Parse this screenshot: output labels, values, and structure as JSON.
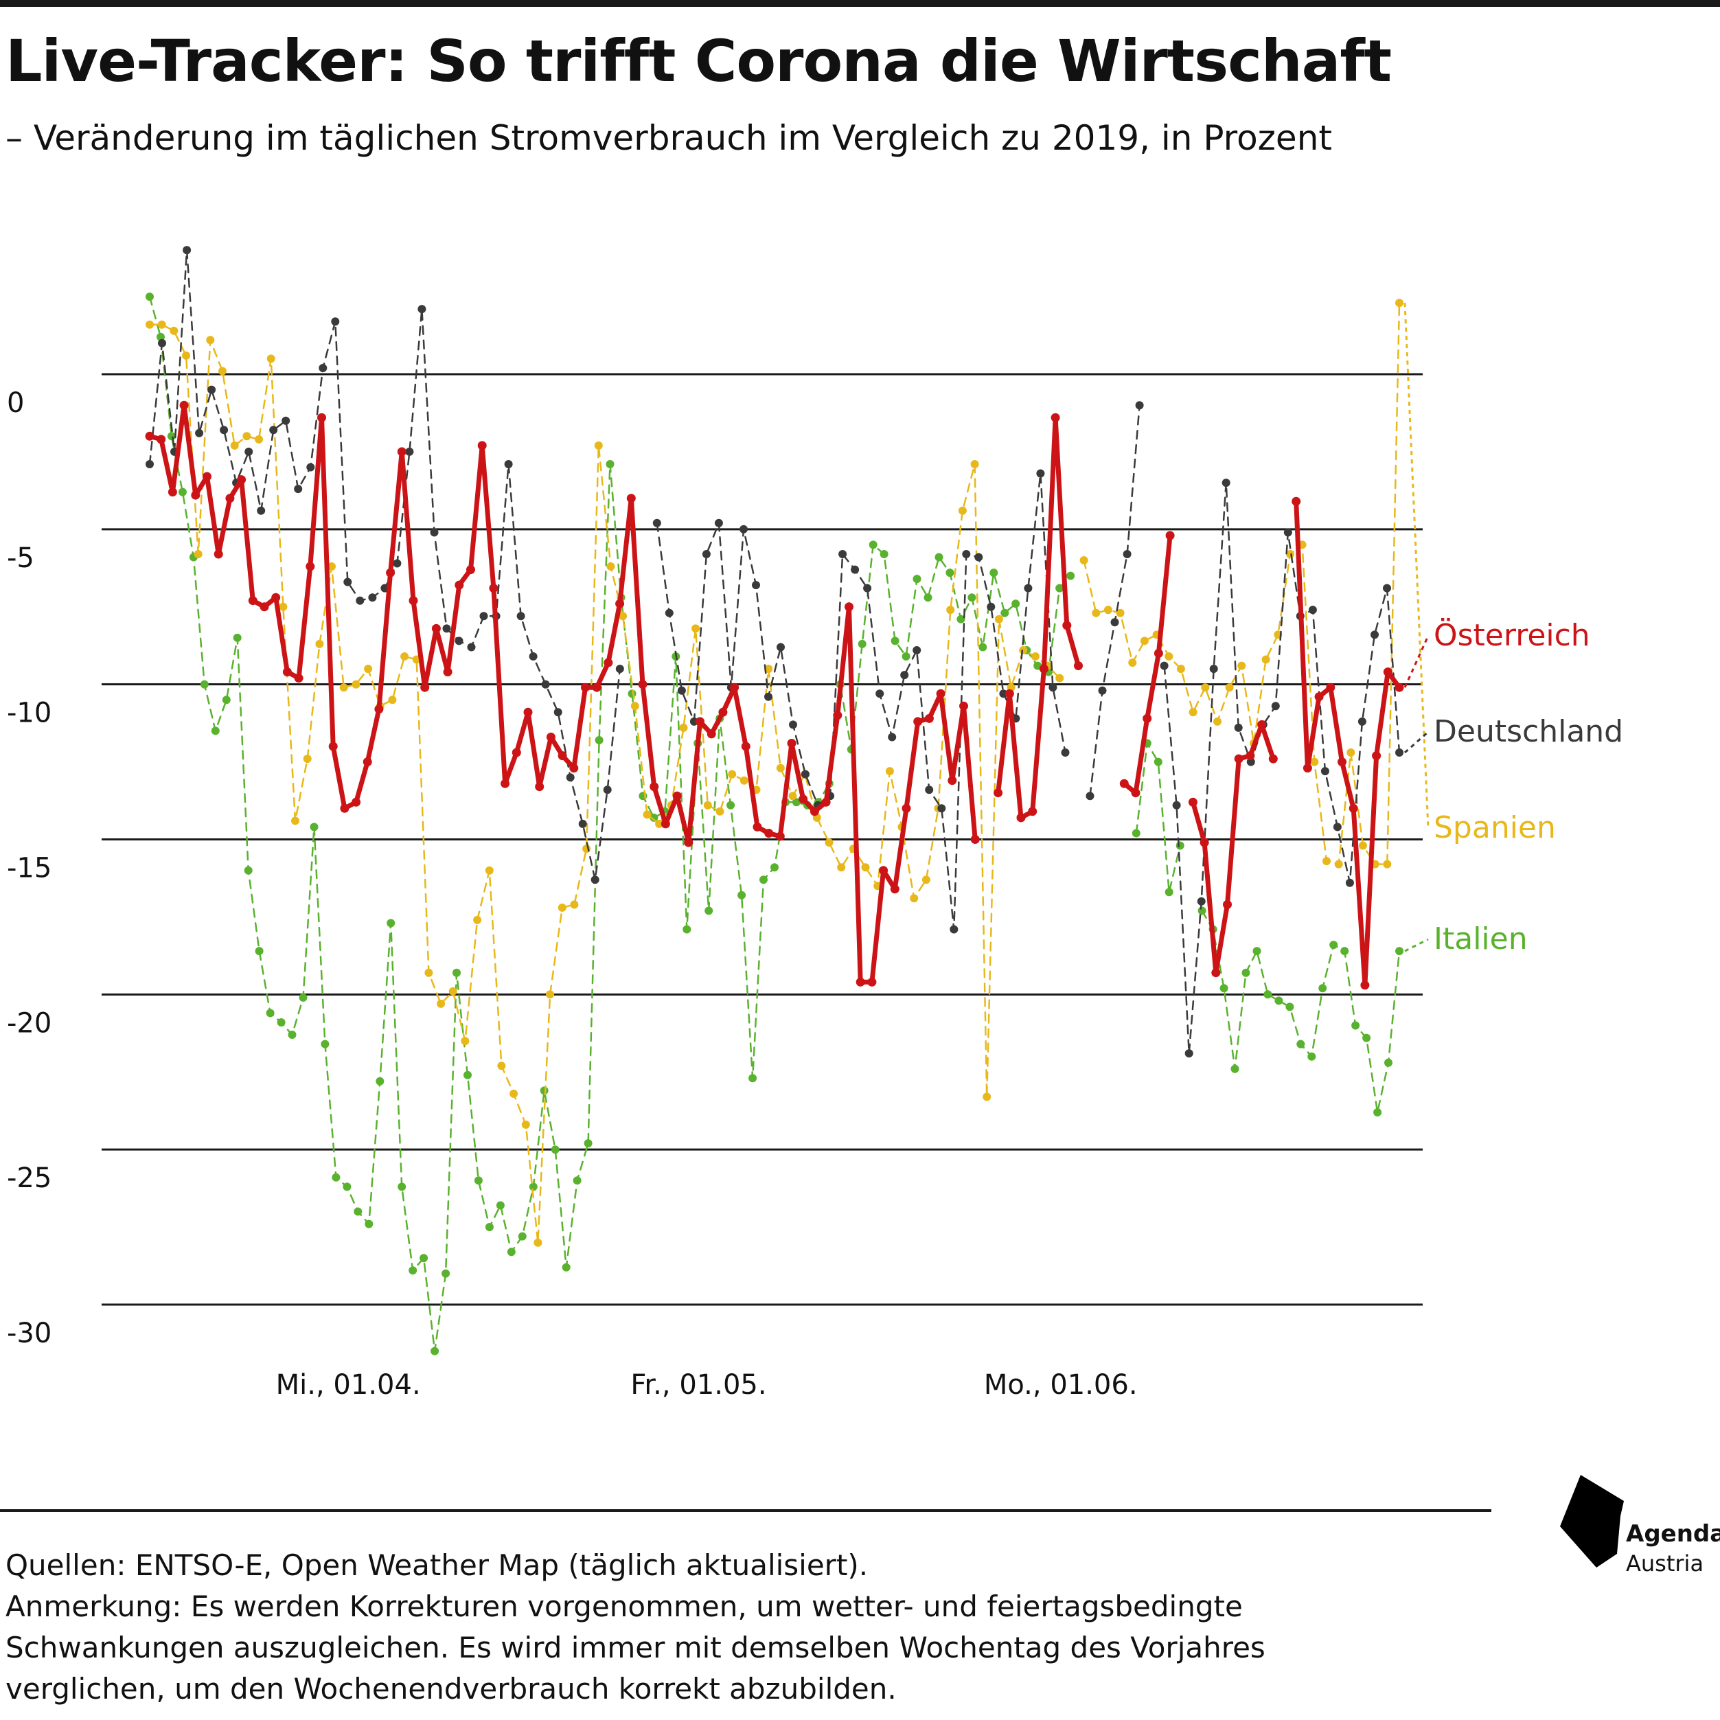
{
  "title": "Live-Tracker: So trifft Corona die Wirtschaft",
  "subtitle": "– Veränderung im täglichen Stromverbrauch im Vergleich zu 2019, in Prozent",
  "footer": {
    "sources": "Quellen: ENTSO-E, Open Weather Map (täglich aktualisiert).",
    "note_line1": "Anmerkung: Es werden Korrekturen vorgenommen, um wetter- und feiertagsbedingte",
    "note_line2": "Schwankungen auszugleichen. Es wird immer mit demselben Wochentag des Vorjahres",
    "note_line3": "verglichen, um den Wochenendverbrauch korrekt abzubilden."
  },
  "logo": {
    "line1": "Agenda",
    "line2": "Austria"
  },
  "chart_data": {
    "type": "line",
    "title": "Live-Tracker: So trifft Corona die Wirtschaft",
    "subtitle": "– Veränderung im täglichen Stromverbrauch im Vergleich zu 2019, in Prozent",
    "ylim": [
      -30,
      0
    ],
    "yticks": [
      0,
      -5,
      -10,
      -15,
      -20,
      -25,
      -30
    ],
    "ytick_labels": [
      "0",
      "-5",
      "-10",
      "-15",
      "-20",
      "-25",
      "-30"
    ],
    "x_start": "2020-03-15",
    "x_end": "2020-06-30",
    "xticks": [
      {
        "date": "2020-04-01",
        "label": "Mi., 01.04."
      },
      {
        "date": "2020-05-01",
        "label": "Fr., 01.05."
      },
      {
        "date": "2020-06-01",
        "label": "Mo., 01.06."
      }
    ],
    "grid": true,
    "legend": "labels at right end of lines",
    "series": [
      {
        "name": "Italien",
        "color": "#59b22e",
        "style": "dashed",
        "width": 2.5,
        "values": [
          2.5,
          1.2,
          -2,
          -3.8,
          -5.9,
          -10,
          -11.5,
          -10.5,
          -8.5,
          -16,
          -18.6,
          -20.6,
          -20.9,
          -21.3,
          -20.1,
          -14.6,
          -21.6,
          -25.9,
          -26.2,
          -27,
          -27.4,
          -22.8,
          -17.7,
          -26.2,
          -28.9,
          -28.5,
          -31.5,
          -29,
          -19.3,
          -22.6,
          -26,
          -27.5,
          -26.8,
          -28.3,
          -27.8,
          -26.2,
          -23.1,
          -25,
          -28.8,
          -26,
          -24.8,
          -11.8,
          -2.9,
          -7.2,
          -10.3,
          -13.6,
          -14.3,
          -14.1,
          -9.1,
          -17.9,
          -11.9,
          -17.3,
          -11.1,
          -13.9,
          -16.8,
          -22.7,
          -16.3,
          -15.9,
          -13.8,
          -13.8,
          -13.9,
          -13.8,
          -13.2,
          -10,
          -12.1,
          -8.7,
          -5.5,
          -5.8,
          -8.6,
          -9.1,
          -6.6,
          -7.2,
          -5.9,
          -6.4,
          -7.9,
          -7.2,
          -8.8,
          -6.4,
          -7.7,
          -7.4,
          -8.9,
          -9.4,
          -9.6,
          -6.9,
          -6.5,
          null,
          null,
          null,
          null,
          null,
          -14.8,
          -11.9,
          -12.5,
          -16.7,
          -15.2,
          null,
          -17.3,
          -17.9,
          -19.8,
          -22.4,
          -19.3,
          -18.6,
          -20,
          -20.2,
          -20.4,
          -21.6,
          -22,
          -19.8,
          -18.4,
          -18.6,
          -21,
          -21.4,
          -23.8,
          -22.2,
          -18.6
        ]
      },
      {
        "name": "Spanien",
        "color": "#e8b81a",
        "style": "dashed",
        "width": 2.5,
        "values": [
          1.6,
          1.6,
          1.4,
          0.6,
          -5.8,
          1.1,
          0.1,
          -2.3,
          -2,
          -2.1,
          0.5,
          -7.5,
          -14.4,
          -12.4,
          -8.7,
          -6.2,
          -10.1,
          -10,
          -9.5,
          -10.7,
          -10.5,
          -9.1,
          -9.2,
          -19.3,
          -20.3,
          -19.9,
          -21.5,
          -17.6,
          -16,
          -22.3,
          -23.2,
          -24.2,
          -28,
          -20,
          -17.2,
          -17.1,
          -15.3,
          -2.3,
          -6.2,
          -7.8,
          -10.7,
          -14.2,
          -14.5,
          -13.9,
          -11.4,
          -8.2,
          -13.9,
          -14.1,
          -12.9,
          -13.1,
          -13.4,
          -9.5,
          -12.7,
          -13.6,
          -12.9,
          -14.3,
          -15.1,
          -15.9,
          -15.3,
          -15.9,
          -16.5,
          -12.8,
          -14.6,
          -16.9,
          -16.3,
          -14,
          -7.6,
          -4.4,
          -2.9,
          -23.3,
          -7.9,
          -10.1,
          -8.9,
          -9.1,
          -9.4,
          -9.8,
          null,
          -6,
          -7.7,
          -7.6,
          -7.7,
          -9.3,
          -8.6,
          -8.4,
          -9.1,
          -9.5,
          -10.9,
          -10.1,
          -11.2,
          -10.1,
          -9.4,
          -11.9,
          -9.2,
          -8.4,
          -5.8,
          -5.5,
          -12.5,
          -15.7,
          -15.8,
          -12.2,
          -15.2,
          -15.8,
          -15.8,
          2.3
        ]
      },
      {
        "name": "Deutschland",
        "color": "#3a3a3a",
        "style": "dashed",
        "width": 2.5,
        "values": [
          -2.9,
          1,
          -2.5,
          4,
          -1.9,
          -0.5,
          -1.8,
          -3.5,
          -2.5,
          -4.4,
          -1.8,
          -1.5,
          -3.7,
          -3,
          0.2,
          1.7,
          -6.7,
          -7.3,
          -7.2,
          -6.9,
          -6.1,
          -2.5,
          2.1,
          -5.1,
          -8.2,
          -8.6,
          -8.8,
          -7.8,
          -7.8,
          -2.9,
          -7.8,
          -9.1,
          -10,
          -10.9,
          -13,
          -14.5,
          -16.3,
          -13.4,
          -9.5,
          null,
          null,
          -4.8,
          -7.7,
          -10.2,
          -11.2,
          -5.8,
          -4.8,
          -10.1,
          -5,
          -6.8,
          -10.4,
          -8.8,
          -11.3,
          -12.9,
          -13.9,
          -13.6,
          -5.8,
          -6.3,
          -6.9,
          -10.3,
          -11.7,
          -9.7,
          -8.9,
          -13.4,
          -14,
          -17.9,
          -5.8,
          -5.9,
          -7.5,
          -10.3,
          -11.1,
          -6.9,
          -3.2,
          -10.1,
          -12.2,
          null,
          -13.6,
          -10.2,
          -8,
          -5.8,
          -1,
          null,
          -9.4,
          -13.9,
          -21.9,
          -17,
          -9.5,
          -3.5,
          -11.4,
          -12.5,
          -11.3,
          -10.7,
          -5.1,
          -7.8,
          -7.6,
          -12.8,
          -14.6,
          -16.4,
          -11.2,
          -8.4,
          -6.9,
          -12.2
        ]
      },
      {
        "name": "Österreich",
        "color": "#cc1417",
        "style": "solid",
        "width": 7,
        "values": [
          -2,
          -2.1,
          -3.8,
          -1,
          -3.9,
          -3.3,
          -5.8,
          -4,
          -3.4,
          -7.3,
          -7.5,
          -7.2,
          -9.6,
          -9.8,
          -6.2,
          -1.4,
          -12,
          -14,
          -13.8,
          -12.5,
          -10.8,
          -6.4,
          -2.5,
          -7.3,
          -10.1,
          -8.2,
          -9.6,
          -6.8,
          -6.3,
          -2.3,
          -6.9,
          -13.2,
          -12.2,
          -10.9,
          -13.3,
          -11.7,
          -12.3,
          -12.7,
          -10.1,
          -10.1,
          -9.3,
          -7.4,
          -4,
          -10,
          -13.3,
          -14.5,
          -13.6,
          -15.1,
          -11.2,
          -11.6,
          -10.9,
          -10.1,
          -12,
          -14.6,
          -14.8,
          -14.9,
          -11.9,
          -13.7,
          -14.1,
          -13.8,
          -11,
          -7.5,
          -19.6,
          -19.6,
          -16,
          -16.6,
          -14,
          -11.2,
          -11.1,
          -10.3,
          -13.1,
          -10.7,
          -15,
          null,
          -13.5,
          -10.3,
          -14.3,
          -14.1,
          -9.5,
          -1.4,
          -8.1,
          -9.4,
          null,
          null,
          null,
          -13.2,
          -13.5,
          -11.1,
          -9,
          -5.2,
          null,
          -13.8,
          -15.1,
          -19.3,
          -17.1,
          -12.4,
          -12.3,
          -11.3,
          -12.4,
          null,
          -4.1,
          -12.7,
          -10.4,
          -10.1,
          -12.5,
          -14,
          -19.7,
          -12.3,
          -9.6,
          -10.1
        ]
      }
    ]
  }
}
